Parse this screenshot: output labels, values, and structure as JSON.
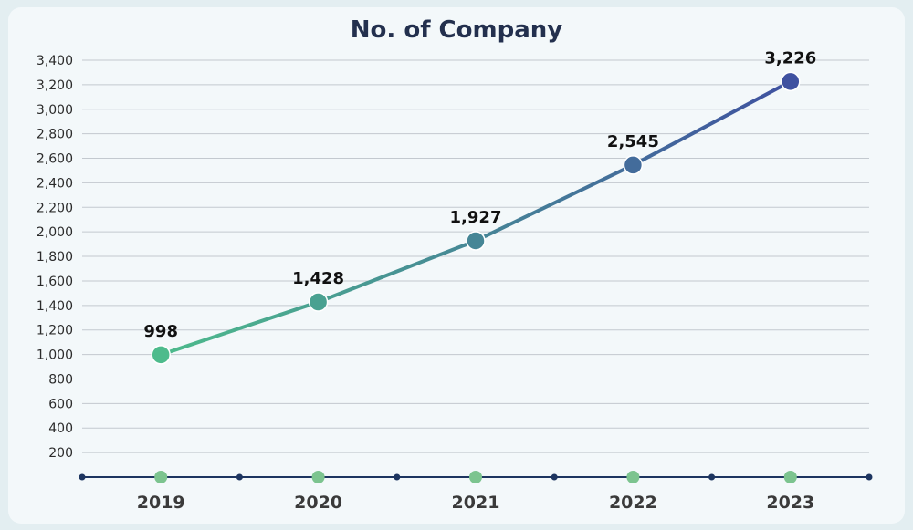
{
  "chart_data": {
    "type": "line",
    "title": "No. of Company",
    "categories": [
      "2019",
      "2020",
      "2021",
      "2022",
      "2023"
    ],
    "series": [
      {
        "values": [
          998,
          1428,
          1927,
          2545,
          3226
        ]
      }
    ],
    "data_labels": [
      "998",
      "1,428",
      "1,927",
      "2,545",
      "3,226"
    ],
    "ylim": [
      0,
      3400
    ],
    "y_ticks": [
      200,
      400,
      600,
      800,
      1000,
      1200,
      1400,
      1600,
      1800,
      2000,
      2200,
      2400,
      2600,
      2800,
      3000,
      3200,
      3400
    ],
    "y_tick_labels": [
      "200",
      "400",
      "600",
      "800",
      "1,000",
      "1,200",
      "1,400",
      "1,600",
      "1,800",
      "2,000",
      "2,200",
      "2,400",
      "2,600",
      "2,800",
      "3,000",
      "3,200",
      "3,400"
    ],
    "grid": true,
    "legend": "none",
    "colors": {
      "start": "#4dbb8c",
      "end": "#3f51a0",
      "axis": "#1d3560",
      "grid": "#c3c9cf",
      "axis_marker": "#7cc48f"
    }
  }
}
